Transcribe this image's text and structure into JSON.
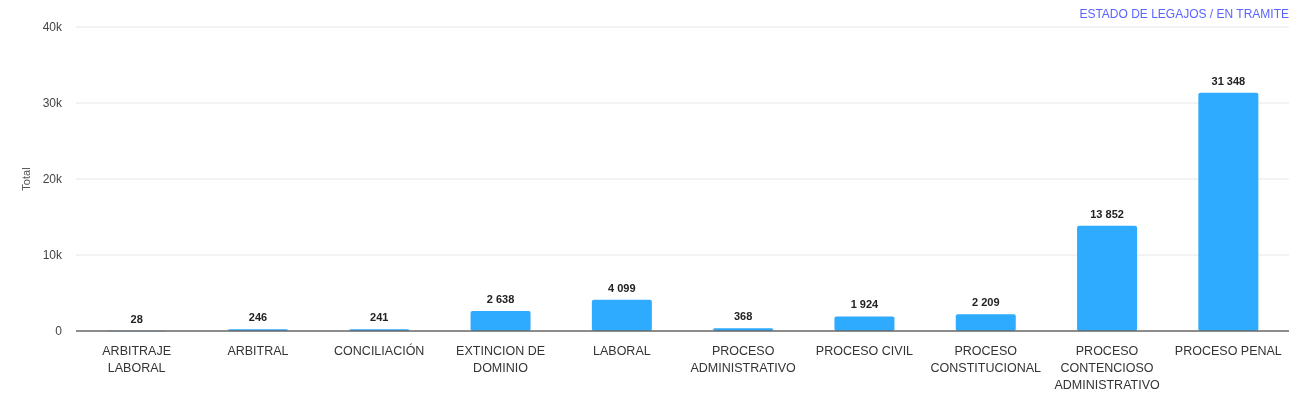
{
  "chart_data": {
    "type": "bar",
    "categories": [
      "ARBITRAJE LABORAL",
      "ARBITRAL",
      "CONCILIACIÓN",
      "EXTINCION DE DOMINIO",
      "LABORAL",
      "PROCESO ADMINISTRATIVO",
      "PROCESO CIVIL",
      "PROCESO CONSTITUCIONAL",
      "PROCESO CONTENCIOSO ADMINISTRATIVO",
      "PROCESO PENAL"
    ],
    "values": [
      28,
      246,
      241,
      2638,
      4099,
      368,
      1924,
      2209,
      13852,
      31348
    ],
    "color": "#2eaaff",
    "ylabel": "Total",
    "ylim": [
      0,
      40000
    ],
    "yticks": [
      {
        "value": 0,
        "label": "0"
      },
      {
        "value": 10000,
        "label": "10k"
      },
      {
        "value": 20000,
        "label": "20k"
      },
      {
        "value": 30000,
        "label": "30k"
      },
      {
        "value": 40000,
        "label": "40k"
      }
    ],
    "grid": "y",
    "data_labels": true,
    "annotations": [
      "ESTADO DE LEGAJOS / EN TRAMITE"
    ]
  }
}
